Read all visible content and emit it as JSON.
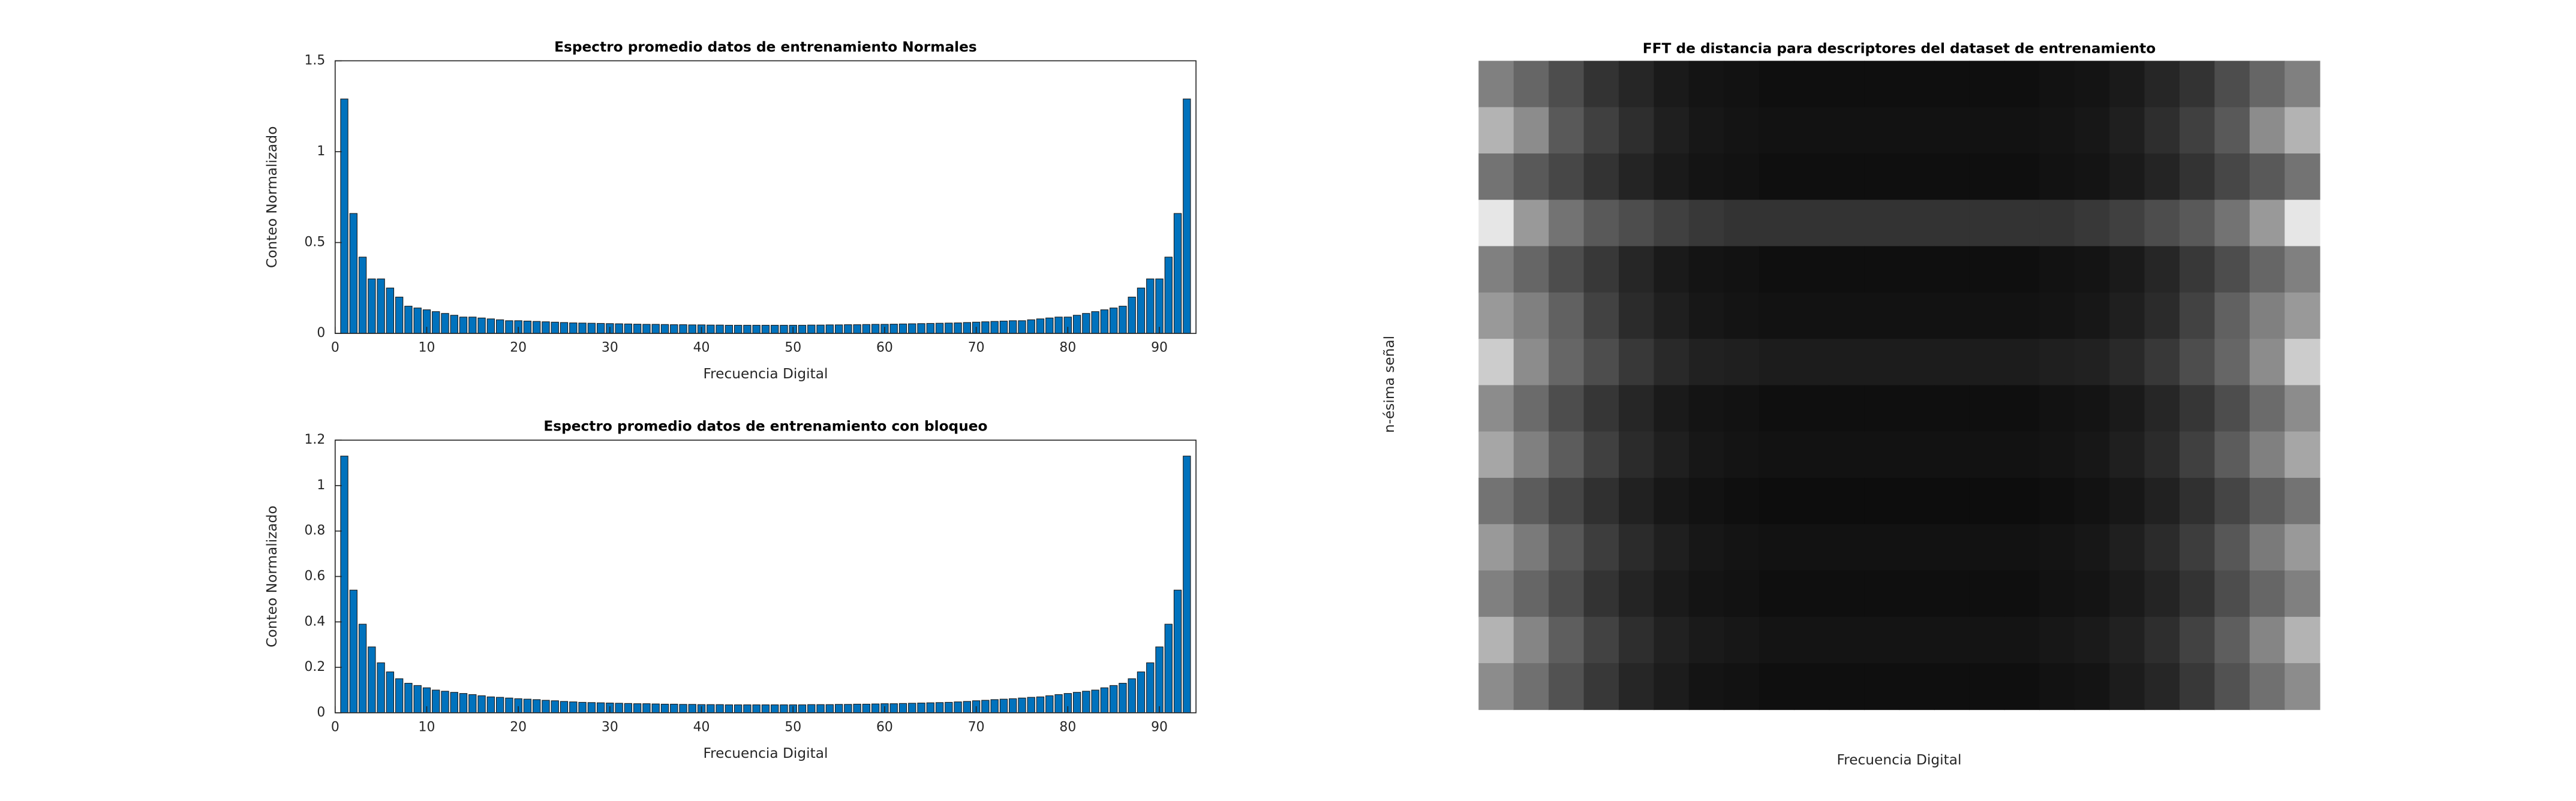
{
  "chart_data": [
    {
      "type": "bar",
      "title": "Espectro promedio datos de entrenamiento Normales",
      "xlabel": "Frecuencia Digital",
      "ylabel": "Conteo Normalizado",
      "x": [
        1,
        2,
        3,
        4,
        5,
        6,
        7,
        8,
        9,
        10,
        11,
        12,
        13,
        14,
        15,
        16,
        17,
        18,
        19,
        20,
        21,
        22,
        23,
        24,
        25,
        26,
        27,
        28,
        29,
        30,
        31,
        32,
        33,
        34,
        35,
        36,
        37,
        38,
        39,
        40,
        41,
        42,
        43,
        44,
        45,
        46,
        47,
        48,
        49,
        50,
        51,
        52,
        53,
        54,
        55,
        56,
        57,
        58,
        59,
        60,
        61,
        62,
        63,
        64,
        65,
        66,
        67,
        68,
        69,
        70,
        71,
        72,
        73,
        74,
        75,
        76,
        77,
        78,
        79,
        80,
        81,
        82,
        83,
        84,
        85,
        86,
        87,
        88,
        89,
        90,
        91,
        92,
        93
      ],
      "values": [
        1.29,
        0.66,
        0.42,
        0.3,
        0.3,
        0.25,
        0.2,
        0.15,
        0.14,
        0.13,
        0.12,
        0.11,
        0.1,
        0.09,
        0.09,
        0.085,
        0.08,
        0.075,
        0.07,
        0.07,
        0.068,
        0.066,
        0.064,
        0.062,
        0.06,
        0.058,
        0.057,
        0.056,
        0.055,
        0.054,
        0.053,
        0.052,
        0.051,
        0.05,
        0.05,
        0.049,
        0.048,
        0.048,
        0.047,
        0.047,
        0.046,
        0.046,
        0.045,
        0.045,
        0.045,
        0.045,
        0.045,
        0.045,
        0.045,
        0.045,
        0.045,
        0.046,
        0.046,
        0.047,
        0.047,
        0.048,
        0.048,
        0.049,
        0.05,
        0.05,
        0.051,
        0.052,
        0.053,
        0.054,
        0.055,
        0.056,
        0.057,
        0.058,
        0.06,
        0.062,
        0.064,
        0.066,
        0.068,
        0.07,
        0.07,
        0.075,
        0.08,
        0.085,
        0.09,
        0.09,
        0.1,
        0.11,
        0.12,
        0.13,
        0.14,
        0.15,
        0.2,
        0.25,
        0.3,
        0.3,
        0.42,
        0.66,
        1.29
      ],
      "color": "#0072bd",
      "xlim": [
        0,
        94
      ],
      "xticks": [
        0,
        10,
        20,
        30,
        40,
        50,
        60,
        70,
        80,
        90
      ],
      "ylim": [
        0,
        1.5
      ],
      "yticks": [
        0,
        0.5,
        1,
        1.5
      ]
    },
    {
      "type": "bar",
      "title": "Espectro promedio datos de entrenamiento con bloqueo",
      "xlabel": "Frecuencia Digital",
      "ylabel": "Conteo Normalizado",
      "x": [
        1,
        2,
        3,
        4,
        5,
        6,
        7,
        8,
        9,
        10,
        11,
        12,
        13,
        14,
        15,
        16,
        17,
        18,
        19,
        20,
        21,
        22,
        23,
        24,
        25,
        26,
        27,
        28,
        29,
        30,
        31,
        32,
        33,
        34,
        35,
        36,
        37,
        38,
        39,
        40,
        41,
        42,
        43,
        44,
        45,
        46,
        47,
        48,
        49,
        50,
        51,
        52,
        53,
        54,
        55,
        56,
        57,
        58,
        59,
        60,
        61,
        62,
        63,
        64,
        65,
        66,
        67,
        68,
        69,
        70,
        71,
        72,
        73,
        74,
        75,
        76,
        77,
        78,
        79,
        80,
        81,
        82,
        83,
        84,
        85,
        86,
        87,
        88,
        89,
        90,
        91,
        92,
        93
      ],
      "values": [
        1.13,
        0.54,
        0.39,
        0.29,
        0.22,
        0.18,
        0.15,
        0.13,
        0.12,
        0.11,
        0.1,
        0.095,
        0.09,
        0.085,
        0.08,
        0.075,
        0.07,
        0.068,
        0.065,
        0.062,
        0.06,
        0.058,
        0.055,
        0.053,
        0.05,
        0.048,
        0.046,
        0.045,
        0.044,
        0.043,
        0.042,
        0.041,
        0.04,
        0.04,
        0.039,
        0.038,
        0.038,
        0.037,
        0.037,
        0.036,
        0.036,
        0.036,
        0.035,
        0.035,
        0.035,
        0.035,
        0.035,
        0.035,
        0.035,
        0.035,
        0.035,
        0.036,
        0.036,
        0.036,
        0.037,
        0.037,
        0.038,
        0.038,
        0.039,
        0.04,
        0.04,
        0.041,
        0.042,
        0.043,
        0.044,
        0.045,
        0.046,
        0.048,
        0.05,
        0.053,
        0.055,
        0.058,
        0.06,
        0.062,
        0.065,
        0.068,
        0.07,
        0.075,
        0.08,
        0.085,
        0.09,
        0.095,
        0.1,
        0.11,
        0.12,
        0.13,
        0.15,
        0.18,
        0.22,
        0.29,
        0.39,
        0.54,
        1.13
      ],
      "color": "#0072bd",
      "xlim": [
        0,
        94
      ],
      "xticks": [
        0,
        10,
        20,
        30,
        40,
        50,
        60,
        70,
        80,
        90
      ],
      "ylim": [
        0,
        1.2
      ],
      "yticks": [
        0,
        0.2,
        0.4,
        0.6,
        0.8,
        1,
        1.2
      ]
    },
    {
      "type": "heatmap",
      "title": "FFT de distancia para descriptores del dataset de entrenamiento",
      "xlabel": "Frecuencia Digital",
      "ylabel": "n-ésima señal",
      "colormap": "gray",
      "clim": [
        0,
        1
      ],
      "values": [
        [
          0.5,
          0.4,
          0.3,
          0.2,
          0.15,
          0.1,
          0.08,
          0.07,
          0.06,
          0.06,
          0.06,
          0.06,
          0.06,
          0.06,
          0.06,
          0.06,
          0.07,
          0.08,
          0.1,
          0.15,
          0.2,
          0.3,
          0.4,
          0.5
        ],
        [
          0.7,
          0.55,
          0.35,
          0.25,
          0.18,
          0.12,
          0.09,
          0.08,
          0.07,
          0.07,
          0.07,
          0.07,
          0.07,
          0.07,
          0.07,
          0.07,
          0.08,
          0.09,
          0.12,
          0.18,
          0.25,
          0.35,
          0.55,
          0.7
        ],
        [
          0.45,
          0.35,
          0.28,
          0.2,
          0.14,
          0.1,
          0.08,
          0.07,
          0.06,
          0.06,
          0.06,
          0.06,
          0.06,
          0.06,
          0.06,
          0.06,
          0.07,
          0.08,
          0.1,
          0.14,
          0.2,
          0.28,
          0.35,
          0.45
        ],
        [
          0.9,
          0.6,
          0.45,
          0.35,
          0.3,
          0.25,
          0.22,
          0.2,
          0.2,
          0.2,
          0.2,
          0.2,
          0.2,
          0.2,
          0.2,
          0.2,
          0.2,
          0.22,
          0.25,
          0.3,
          0.35,
          0.45,
          0.6,
          0.9
        ],
        [
          0.5,
          0.4,
          0.3,
          0.22,
          0.15,
          0.1,
          0.08,
          0.07,
          0.06,
          0.06,
          0.06,
          0.06,
          0.06,
          0.06,
          0.06,
          0.06,
          0.07,
          0.08,
          0.1,
          0.15,
          0.22,
          0.3,
          0.4,
          0.5
        ],
        [
          0.6,
          0.5,
          0.38,
          0.26,
          0.17,
          0.12,
          0.09,
          0.08,
          0.07,
          0.07,
          0.07,
          0.07,
          0.07,
          0.07,
          0.07,
          0.07,
          0.08,
          0.09,
          0.12,
          0.17,
          0.26,
          0.38,
          0.5,
          0.6
        ],
        [
          0.8,
          0.55,
          0.4,
          0.3,
          0.22,
          0.16,
          0.13,
          0.12,
          0.11,
          0.11,
          0.11,
          0.11,
          0.11,
          0.11,
          0.11,
          0.11,
          0.12,
          0.13,
          0.16,
          0.22,
          0.3,
          0.4,
          0.55,
          0.8
        ],
        [
          0.55,
          0.42,
          0.3,
          0.21,
          0.15,
          0.1,
          0.08,
          0.07,
          0.06,
          0.06,
          0.06,
          0.06,
          0.06,
          0.06,
          0.06,
          0.06,
          0.07,
          0.08,
          0.1,
          0.15,
          0.21,
          0.3,
          0.42,
          0.55
        ],
        [
          0.65,
          0.5,
          0.36,
          0.25,
          0.17,
          0.12,
          0.09,
          0.08,
          0.07,
          0.07,
          0.07,
          0.07,
          0.07,
          0.07,
          0.07,
          0.07,
          0.08,
          0.09,
          0.12,
          0.17,
          0.25,
          0.36,
          0.5,
          0.65
        ],
        [
          0.45,
          0.36,
          0.27,
          0.19,
          0.13,
          0.09,
          0.07,
          0.06,
          0.05,
          0.05,
          0.05,
          0.05,
          0.05,
          0.05,
          0.05,
          0.05,
          0.06,
          0.07,
          0.09,
          0.13,
          0.19,
          0.27,
          0.36,
          0.45
        ],
        [
          0.6,
          0.48,
          0.34,
          0.24,
          0.17,
          0.12,
          0.09,
          0.08,
          0.07,
          0.07,
          0.07,
          0.07,
          0.07,
          0.07,
          0.07,
          0.07,
          0.08,
          0.09,
          0.12,
          0.17,
          0.24,
          0.34,
          0.48,
          0.6
        ],
        [
          0.5,
          0.4,
          0.3,
          0.2,
          0.14,
          0.1,
          0.08,
          0.07,
          0.06,
          0.06,
          0.06,
          0.06,
          0.06,
          0.06,
          0.06,
          0.06,
          0.07,
          0.08,
          0.1,
          0.14,
          0.2,
          0.3,
          0.4,
          0.5
        ],
        [
          0.7,
          0.52,
          0.37,
          0.26,
          0.18,
          0.13,
          0.1,
          0.09,
          0.08,
          0.08,
          0.08,
          0.08,
          0.08,
          0.08,
          0.08,
          0.08,
          0.09,
          0.1,
          0.13,
          0.18,
          0.26,
          0.37,
          0.52,
          0.7
        ],
        [
          0.55,
          0.44,
          0.32,
          0.22,
          0.15,
          0.11,
          0.08,
          0.07,
          0.06,
          0.06,
          0.06,
          0.06,
          0.06,
          0.06,
          0.06,
          0.06,
          0.07,
          0.08,
          0.11,
          0.15,
          0.22,
          0.32,
          0.44,
          0.55
        ]
      ]
    }
  ]
}
